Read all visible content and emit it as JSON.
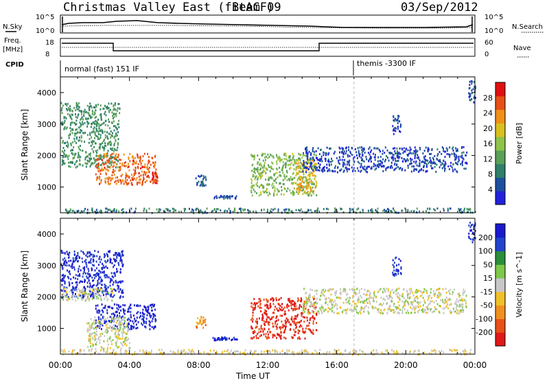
{
  "header": {
    "title": "Christmas Valley East (fitACF)",
    "beam": "Beam 09",
    "date": "03/Sep/2012"
  },
  "ancillary": {
    "nsky_label": "N.Sky",
    "nsearch_label": "N.Search",
    "freq_label_1": "Freq.",
    "freq_label_2": "[MHz]",
    "nave_label": "Nave",
    "cpid_label": "CPID",
    "noise_ticks": [
      "10^5",
      "10^0"
    ],
    "freq_ticks": [
      "18",
      "8"
    ],
    "nave_ticks": [
      "60",
      "0"
    ],
    "cpid_programs": [
      {
        "name": "normal (fast) 151 IF",
        "start_hour": 0
      },
      {
        "name": "themis -3300 IF",
        "start_hour": 17
      }
    ]
  },
  "axes": {
    "x_label": "Time UT",
    "x_ticks": [
      "00:00",
      "04:00",
      "08:00",
      "12:00",
      "16:00",
      "20:00",
      "00:00"
    ],
    "y_label": "Slant Range [km]",
    "y_ticks": [
      "1000",
      "2000",
      "3000",
      "4000"
    ]
  },
  "colors": {
    "power": [
      "#2222dd",
      "#1e4fa0",
      "#2f7f6a",
      "#5aa05a",
      "#8ec24a",
      "#d8c020",
      "#f0901a",
      "#e85018",
      "#e01010"
    ],
    "velocity": [
      "#1a1acc",
      "#2244cc",
      "#2a8e3a",
      "#7ec84a",
      "#c8c8c8",
      "#f0c02a",
      "#f09020",
      "#e85018",
      "#e01818"
    ]
  },
  "chart_data": [
    {
      "type": "heatmap",
      "panel": "power",
      "xlabel": "Time UT",
      "ylabel": "Slant Range [km]",
      "xlim": [
        0,
        24
      ],
      "ylim": [
        180,
        4500
      ],
      "x_unit": "hours UT",
      "colorbar": {
        "label": "Power [dB]",
        "ticks": [
          "4",
          "8",
          "12",
          "16",
          "20",
          "24",
          "28"
        ],
        "range": [
          0,
          30
        ]
      },
      "regions": [
        {
          "t": [
            0.0,
            3.4
          ],
          "r": [
            1650,
            3700
          ],
          "value": 10
        },
        {
          "t": [
            2.0,
            5.5
          ],
          "r": [
            1100,
            2100
          ],
          "value": 24
        },
        {
          "t": [
            5.3,
            5.6
          ],
          "r": [
            1150,
            1500
          ],
          "value": 26
        },
        {
          "t": [
            7.8,
            8.4
          ],
          "r": [
            1050,
            1400
          ],
          "value": 6
        },
        {
          "t": [
            8.8,
            10.2
          ],
          "r": [
            650,
            750
          ],
          "value": 4
        },
        {
          "t": [
            11.0,
            14.8
          ],
          "r": [
            750,
            2100
          ],
          "value": 14
        },
        {
          "t": [
            13.6,
            14.8
          ],
          "r": [
            800,
            1900
          ],
          "value": 20
        },
        {
          "t": [
            14.0,
            23.5
          ],
          "r": [
            1500,
            2300
          ],
          "value": 4
        },
        {
          "t": [
            0.0,
            24.0
          ],
          "r": [
            200,
            350
          ],
          "value": 8
        },
        {
          "t": [
            19.2,
            19.7
          ],
          "r": [
            2700,
            3300
          ],
          "value": 4
        },
        {
          "t": [
            23.6,
            24.0
          ],
          "r": [
            3700,
            4400
          ],
          "value": 4
        }
      ]
    },
    {
      "type": "heatmap",
      "panel": "velocity",
      "xlabel": "Time UT",
      "ylabel": "Slant Range [km]",
      "xlim": [
        0,
        24
      ],
      "ylim": [
        180,
        4500
      ],
      "x_unit": "hours UT",
      "colorbar": {
        "label": "Velocity [m s^-1]",
        "ticks": [
          "200",
          "100",
          "50",
          "15",
          "-15",
          "-50",
          "-100",
          "-200"
        ],
        "range": [
          -250,
          250
        ]
      },
      "regions": [
        {
          "t": [
            0.0,
            3.6
          ],
          "r": [
            2000,
            3500
          ],
          "value": 200
        },
        {
          "t": [
            0.0,
            3.0
          ],
          "r": [
            1900,
            2300
          ],
          "value": 0
        },
        {
          "t": [
            2.0,
            5.5
          ],
          "r": [
            1000,
            1800
          ],
          "value": 220
        },
        {
          "t": [
            1.5,
            4.0
          ],
          "r": [
            350,
            1400
          ],
          "value": 0
        },
        {
          "t": [
            7.8,
            8.4
          ],
          "r": [
            1050,
            1400
          ],
          "value": -100
        },
        {
          "t": [
            8.8,
            10.2
          ],
          "r": [
            650,
            750
          ],
          "value": 200
        },
        {
          "t": [
            11.0,
            14.8
          ],
          "r": [
            700,
            2000
          ],
          "value": -210
        },
        {
          "t": [
            14.0,
            23.5
          ],
          "r": [
            1500,
            2300
          ],
          "value": 0
        },
        {
          "t": [
            0.0,
            24.0
          ],
          "r": [
            200,
            350
          ],
          "value": -30
        },
        {
          "t": [
            19.2,
            19.7
          ],
          "r": [
            2700,
            3300
          ],
          "value": 200
        },
        {
          "t": [
            23.6,
            24.0
          ],
          "r": [
            3700,
            4400
          ],
          "value": 200
        }
      ]
    }
  ]
}
